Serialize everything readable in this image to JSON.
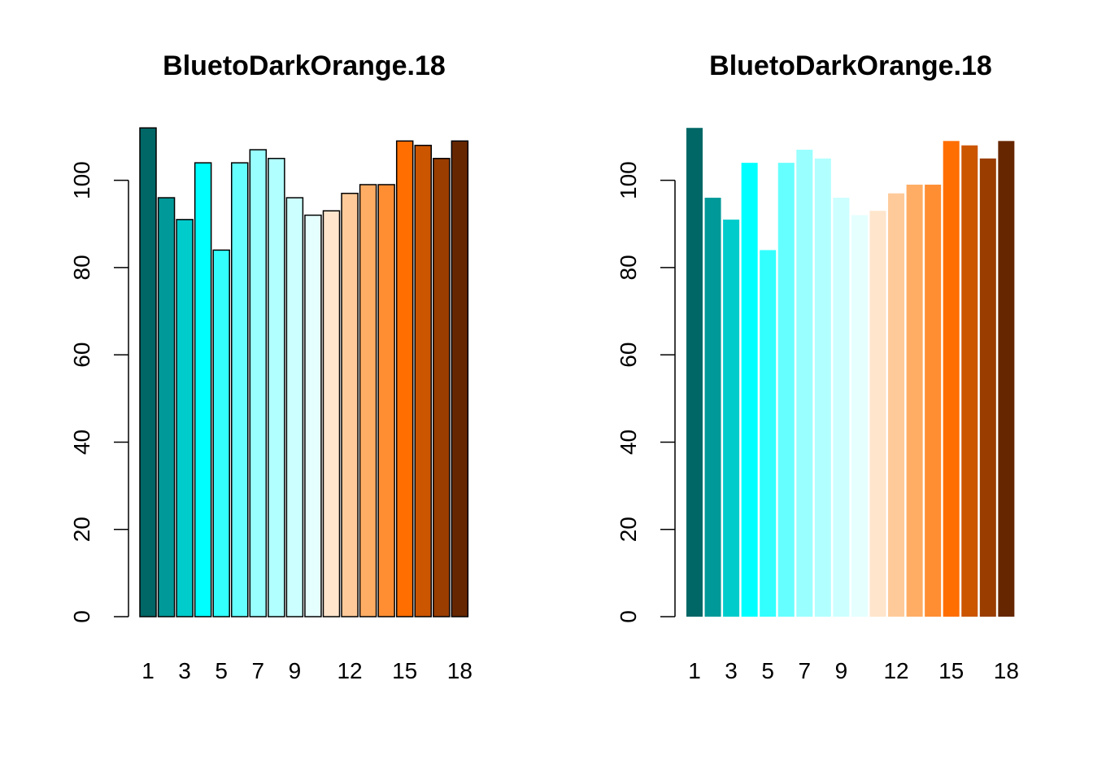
{
  "chart_data": [
    {
      "type": "bar",
      "title": "BluetoDarkOrange.18",
      "xlabel": "",
      "ylabel": "",
      "categories": [
        "1",
        "2",
        "3",
        "4",
        "5",
        "6",
        "7",
        "8",
        "9",
        "10",
        "11",
        "12",
        "13",
        "14",
        "15",
        "16",
        "17",
        "18"
      ],
      "x_tick_labels": [
        "1",
        "3",
        "5",
        "7",
        "9",
        "12",
        "15",
        "18"
      ],
      "y_ticks": [
        "0",
        "20",
        "40",
        "60",
        "80",
        "100"
      ],
      "values": [
        112,
        96,
        91,
        104,
        84,
        104,
        107,
        105,
        96,
        92,
        93,
        97,
        99,
        99,
        109,
        108,
        105,
        109
      ],
      "bar_colors": [
        "#006666",
        "#009999",
        "#00CCCC",
        "#00FFFF",
        "#33FFFF",
        "#66FFFF",
        "#99FFFF",
        "#B2FFFF",
        "#CCFFFF",
        "#E5FFFF",
        "#FFE5CC",
        "#FFCA99",
        "#FFAD65",
        "#FF8E33",
        "#FF6E00",
        "#CC5500",
        "#993D00",
        "#662700"
      ],
      "bar_borders": true,
      "ylim": [
        0,
        112
      ],
      "grid": false
    },
    {
      "type": "bar",
      "title": "BluetoDarkOrange.18",
      "xlabel": "",
      "ylabel": "",
      "categories": [
        "1",
        "2",
        "3",
        "4",
        "5",
        "6",
        "7",
        "8",
        "9",
        "10",
        "11",
        "12",
        "13",
        "14",
        "15",
        "16",
        "17",
        "18"
      ],
      "x_tick_labels": [
        "1",
        "3",
        "5",
        "7",
        "9",
        "12",
        "15",
        "18"
      ],
      "y_ticks": [
        "0",
        "20",
        "40",
        "60",
        "80",
        "100"
      ],
      "values": [
        112,
        96,
        91,
        104,
        84,
        104,
        107,
        105,
        96,
        92,
        93,
        97,
        99,
        99,
        109,
        108,
        105,
        109
      ],
      "bar_colors": [
        "#006666",
        "#009999",
        "#00CCCC",
        "#00FFFF",
        "#33FFFF",
        "#66FFFF",
        "#99FFFF",
        "#B2FFFF",
        "#CCFFFF",
        "#E5FFFF",
        "#FFE5CC",
        "#FFCA99",
        "#FFAD65",
        "#FF8E33",
        "#FF6E00",
        "#CC5500",
        "#993D00",
        "#662700"
      ],
      "bar_borders": false,
      "ylim": [
        0,
        112
      ],
      "grid": false
    }
  ]
}
